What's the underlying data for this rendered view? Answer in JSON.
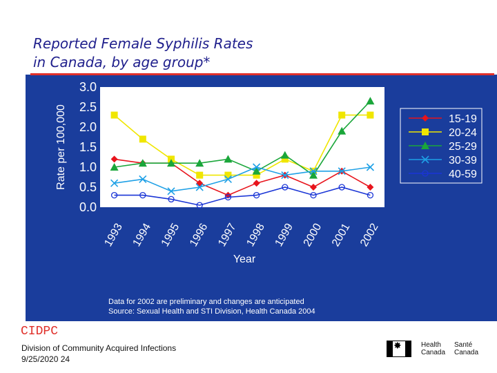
{
  "title_line1": "Reported Female Syphilis Rates",
  "title_line2": "in Canada, by age group*",
  "footnote_line1": "Data for 2002 are preliminary and changes are anticipated",
  "footnote_line2": "Source:  Sexual Health and STI Division, Health Canada 2004",
  "org_code": "CIDPC",
  "division": "Division of Community Acquired Infections",
  "date_page": " 9/25/2020 24",
  "logo": {
    "en_line1": "Health",
    "en_line2": "Canada",
    "fr_line1": "Santé",
    "fr_line2": "Canada"
  },
  "colors": {
    "panel": "#1a3d9c",
    "plot_area": "#ffffff",
    "title": "#1f1f8c",
    "accent": "#e0302a"
  },
  "chart_data": {
    "type": "line",
    "xlabel": "Year",
    "ylabel": "Rate per 100,000",
    "ylim": [
      0,
      3.0
    ],
    "y_ticks": [
      "0.0",
      "0.5",
      "1.0",
      "1.5",
      "2.0",
      "2.5",
      "3.0"
    ],
    "categories": [
      "1993",
      "1994",
      "1995",
      "1996",
      "1997",
      "1998",
      "1999",
      "2000",
      "2001",
      "2002"
    ],
    "grid": false,
    "legend_position": "right",
    "series": [
      {
        "name": "15-19",
        "color": "#e8141c",
        "marker": "diamond",
        "values": [
          1.2,
          1.1,
          1.1,
          0.6,
          0.3,
          0.6,
          0.8,
          0.5,
          0.9,
          0.5
        ]
      },
      {
        "name": "20-24",
        "color": "#f0e600",
        "marker": "square",
        "values": [
          2.3,
          1.7,
          1.2,
          0.8,
          0.8,
          0.8,
          1.2,
          0.9,
          2.3,
          2.3
        ]
      },
      {
        "name": "25-29",
        "color": "#1aa63a",
        "marker": "triangle",
        "values": [
          1.0,
          1.1,
          1.1,
          1.1,
          1.2,
          0.9,
          1.3,
          0.8,
          1.9,
          2.65
        ]
      },
      {
        "name": "30-39",
        "color": "#1ea0e6",
        "marker": "x",
        "values": [
          0.6,
          0.7,
          0.4,
          0.5,
          0.7,
          1.0,
          0.8,
          0.9,
          0.9,
          1.0
        ]
      },
      {
        "name": "40-59",
        "color": "#1a35d6",
        "marker": "circle",
        "values": [
          0.3,
          0.3,
          0.2,
          0.05,
          0.25,
          0.3,
          0.5,
          0.3,
          0.5,
          0.3
        ]
      }
    ]
  }
}
